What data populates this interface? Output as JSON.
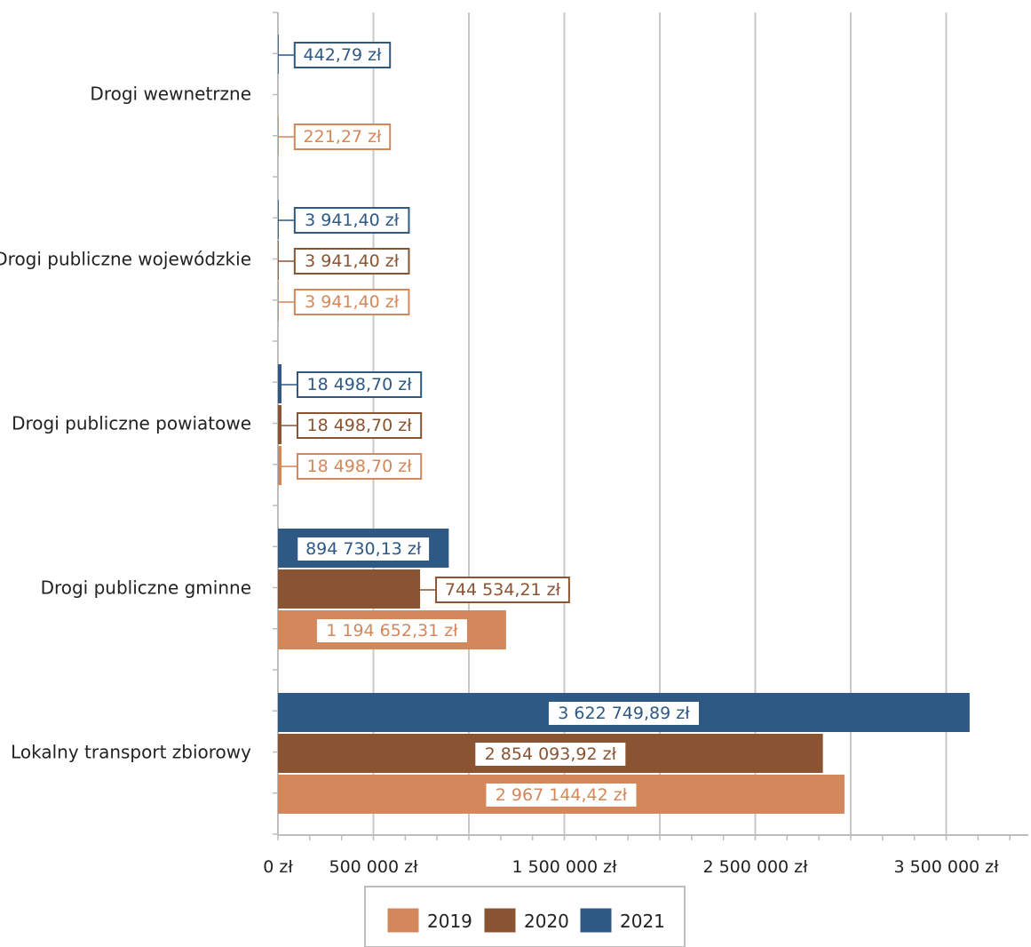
{
  "chart_data": {
    "type": "bar",
    "orientation": "horizontal",
    "title": "",
    "xlabel": "",
    "ylabel": "",
    "categories": [
      "Lokalny transport zbiorowy",
      "Drogi publiczne gminne",
      "Drogi publiczne powiatowe",
      "Drogi publiczne wojewódzkie",
      "Drogi wewnetrzne"
    ],
    "series": [
      {
        "name": "2019",
        "color": "#d4875a",
        "values": [
          2967144.42,
          1194652.31,
          18498.7,
          3941.4,
          221.27
        ],
        "labels": [
          "2 967 144,42 zł",
          "1 194 652,31 zł",
          "18 498,70 zł",
          "3 941,40 zł",
          "221,27 zł"
        ]
      },
      {
        "name": "2020",
        "color": "#8a5433",
        "values": [
          2854093.92,
          744534.21,
          18498.7,
          3941.4,
          null
        ],
        "labels": [
          "2 854 093,92 zł",
          "744 534,21 zł",
          "18 498,70 zł",
          "3 941,40 zł",
          ""
        ]
      },
      {
        "name": "2021",
        "color": "#2e5985",
        "values": [
          3622749.89,
          894730.13,
          18498.7,
          3941.4,
          442.79
        ],
        "labels": [
          "3 622 749,89 zł",
          "894 730,13 zł",
          "18 498,70 zł",
          "3 941,40 zł",
          "442,79 zł"
        ]
      }
    ],
    "xlim": [
      0,
      3900000
    ],
    "xticks": [
      0,
      500000,
      1500000,
      2500000,
      3500000
    ],
    "xtick_labels": [
      "0 zł",
      "500 000 zł",
      "1 500 000 zł",
      "2 500 000 zł",
      "3 500 000 zł"
    ],
    "gridlines": [
      0,
      500000,
      1000000,
      1500000,
      2000000,
      2500000,
      3000000,
      3500000
    ],
    "grid": true,
    "legend_position": "bottom",
    "grid_color": "#c8c8c8",
    "axis_color": "#bdbdbd",
    "text_color": "#222222"
  }
}
